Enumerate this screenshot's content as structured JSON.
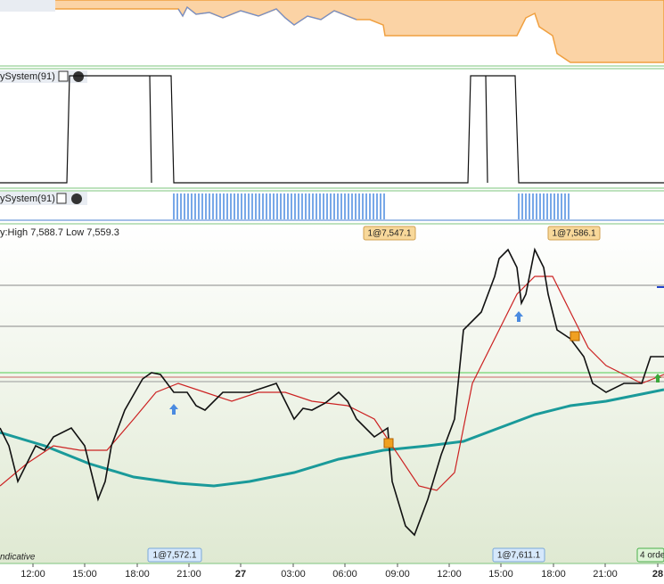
{
  "indicator_panels": [
    {
      "title": "ySystem(91)"
    },
    {
      "title": "ySystem(91)"
    }
  ],
  "price_panel": {
    "info": "y:High 7,588.7 Low 7,559.3",
    "orders_top": [
      "1@7,547.1",
      "1@7,586.1"
    ],
    "orders_bottom": [
      "1@7,572.1",
      "1@7,611.1"
    ],
    "footer_note": "ndicative",
    "orders_badge": "4 orde"
  },
  "time_axis": {
    "labels": [
      "12:00",
      "15:00",
      "18:00",
      "21:00",
      "27",
      "03:00",
      "06:00",
      "09:00",
      "12:00",
      "15:00",
      "18:00",
      "21:00",
      "28"
    ]
  }
}
